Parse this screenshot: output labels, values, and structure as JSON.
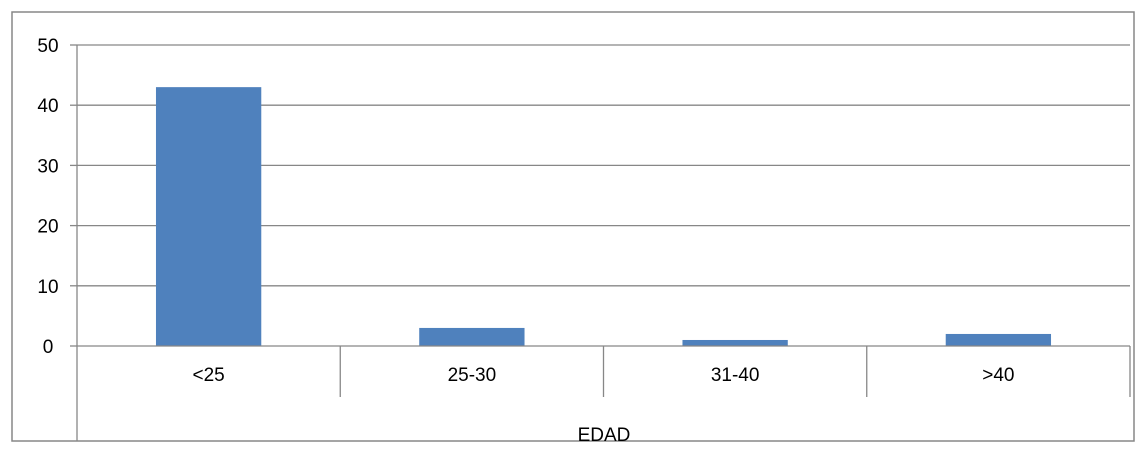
{
  "chart_data": {
    "type": "bar",
    "categories": [
      "<25",
      "25-30",
      "31-40",
      ">40"
    ],
    "series": [
      {
        "values": [
          43,
          3,
          1,
          2
        ]
      }
    ],
    "xlabel": "EDAD",
    "ylabel": "",
    "ylim": [
      0,
      50
    ],
    "yticks": [
      "0",
      "10",
      "20",
      "30",
      "40",
      "50"
    ],
    "grid": "horizontal",
    "legend": "none",
    "colors": {
      "bar": "#4F81BD",
      "grid": "#878787",
      "frame": "#878787"
    }
  }
}
